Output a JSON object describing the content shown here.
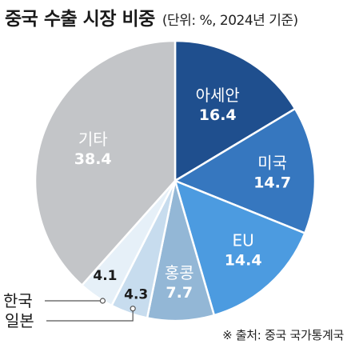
{
  "chart_data": {
    "type": "pie",
    "title": "중국 수출 시장 비중",
    "unit_note": "(단위: %, 2024년 기준)",
    "slices": [
      {
        "label": "아세안",
        "value": 16.4,
        "color": "#1f4f8e"
      },
      {
        "label": "미국",
        "value": 14.7,
        "color": "#3677bf"
      },
      {
        "label": "EU",
        "value": 14.4,
        "color": "#4c9be0"
      },
      {
        "label": "홍콩",
        "value": 7.7,
        "color": "#93b7d6"
      },
      {
        "label": "일본",
        "value": 4.3,
        "color": "#c7dcee"
      },
      {
        "label": "한국",
        "value": 4.1,
        "color": "#e6f0f8"
      },
      {
        "label": "기타",
        "value": 38.4,
        "color": "#c3c5c8"
      }
    ],
    "source": "※ 출처: 중국 국가통계국"
  }
}
